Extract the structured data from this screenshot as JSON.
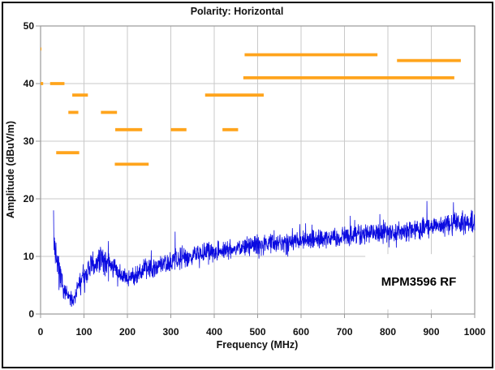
{
  "chart_data": {
    "type": "line",
    "title": "Polarity: Horizontal",
    "xlabel": "Frequency (MHz)",
    "ylabel": "Amplitude (dBuV/m)",
    "annotation": "MPM3596 RF",
    "xlim": [
      0,
      1000
    ],
    "ylim": [
      0,
      50
    ],
    "x_ticks": [
      0,
      100,
      200,
      300,
      400,
      500,
      600,
      700,
      800,
      900,
      1000
    ],
    "y_ticks": [
      0,
      10,
      20,
      30,
      40,
      50
    ],
    "grid": true,
    "legend": "none",
    "colors": {
      "trace": "#0a0ae0",
      "limit": "#ffa41c",
      "grid": "#c9c9c9",
      "axis": "#9a9a9a",
      "text": "#111111",
      "border": "#000000",
      "background": "#ffffff"
    },
    "series": [
      {
        "name": "radiated-emissions-sweep",
        "type": "noisy-band",
        "color": "#0a0ae0",
        "x_start_mhz": 30,
        "envelope_f_center_spread": [
          [
            30,
            13,
            5
          ],
          [
            38,
            9,
            3
          ],
          [
            45,
            6.5,
            2.5
          ],
          [
            55,
            4,
            2
          ],
          [
            65,
            2.8,
            1.6
          ],
          [
            75,
            2.5,
            1.5
          ],
          [
            85,
            4.5,
            2
          ],
          [
            95,
            6,
            2
          ],
          [
            105,
            7,
            2.2
          ],
          [
            120,
            8.5,
            2.5
          ],
          [
            135,
            9.3,
            2.5
          ],
          [
            150,
            9.3,
            2.5
          ],
          [
            165,
            8.3,
            2.3
          ],
          [
            180,
            7,
            2
          ],
          [
            195,
            6.3,
            1.8
          ],
          [
            215,
            6.6,
            2
          ],
          [
            240,
            7.8,
            2.3
          ],
          [
            270,
            8.3,
            2.3
          ],
          [
            300,
            9.3,
            2.4
          ],
          [
            330,
            9.8,
            2.2
          ],
          [
            360,
            10.3,
            2.2
          ],
          [
            400,
            10.9,
            2
          ],
          [
            450,
            11.4,
            2
          ],
          [
            500,
            12,
            2
          ],
          [
            550,
            12.4,
            2
          ],
          [
            600,
            12.9,
            2
          ],
          [
            650,
            13.1,
            2
          ],
          [
            700,
            13.5,
            2
          ],
          [
            750,
            13.9,
            2.1
          ],
          [
            800,
            14.2,
            2.1
          ],
          [
            850,
            14.5,
            2.2
          ],
          [
            900,
            15.1,
            2.2
          ],
          [
            950,
            15.6,
            2.3
          ],
          [
            1000,
            16.3,
            2.5
          ]
        ],
        "spikes_f_amp": [
          [
            30,
            18
          ],
          [
            310,
            14.3
          ],
          [
            890,
            19.6
          ]
        ]
      },
      {
        "name": "peak-limit-markers",
        "type": "segments",
        "color": "#ffa41c",
        "segments_f1_f2_amp": [
          [
            0,
            2,
            46
          ],
          [
            0,
            6,
            40
          ],
          [
            22,
            55,
            40
          ],
          [
            36,
            89,
            28
          ],
          [
            64,
            87,
            35
          ],
          [
            73,
            109,
            38
          ],
          [
            139,
            176,
            35
          ],
          [
            171,
            249,
            26
          ],
          [
            172,
            234,
            32
          ],
          [
            300,
            336,
            32
          ],
          [
            379,
            514,
            38
          ],
          [
            419,
            455,
            32
          ],
          [
            467,
            953,
            41
          ],
          [
            470,
            776,
            45
          ],
          [
            821,
            968,
            44
          ]
        ]
      }
    ],
    "annotation_box": {
      "f1": 748,
      "f2": 995,
      "a1": 0.8,
      "a2": 10.4
    }
  }
}
